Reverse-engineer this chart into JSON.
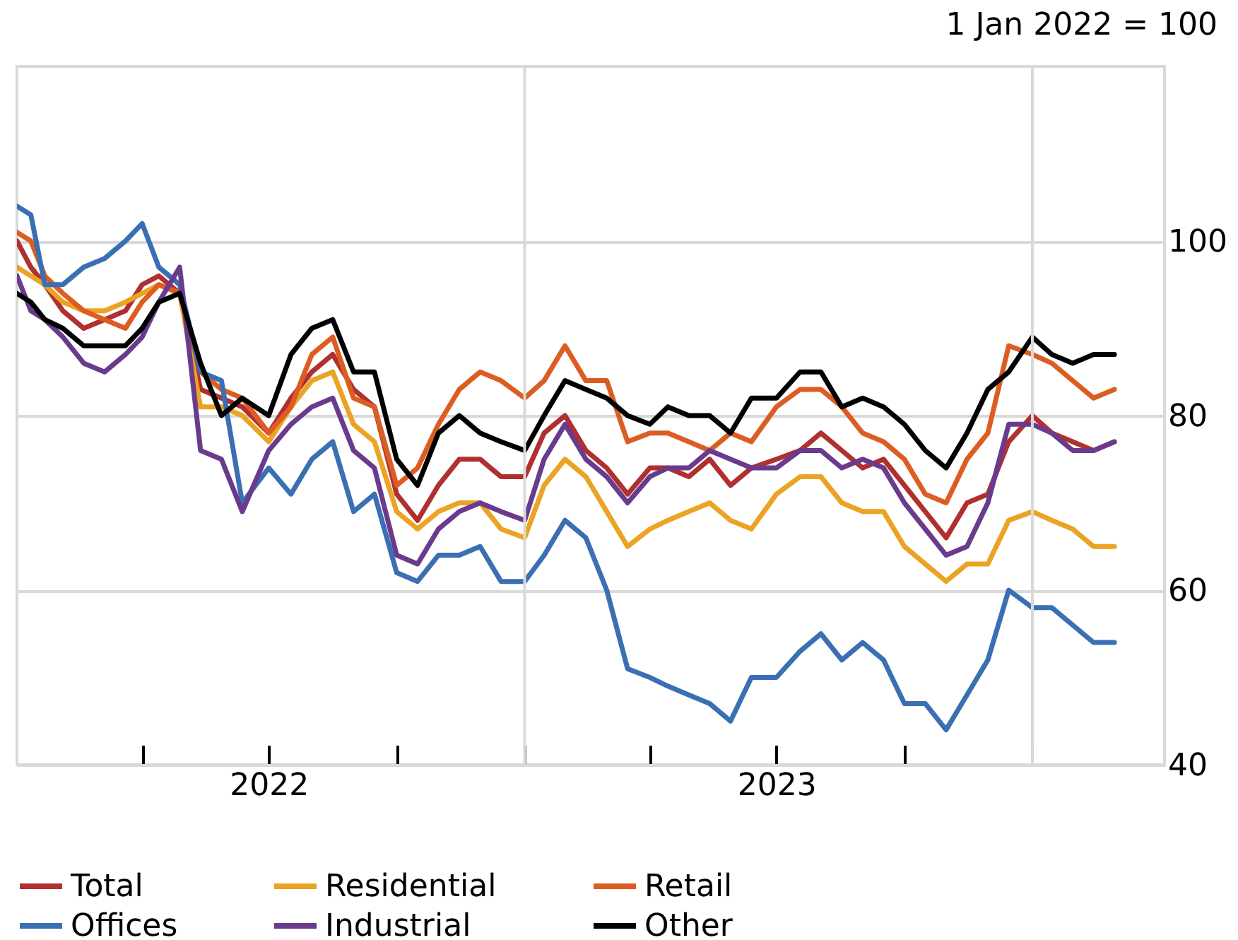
{
  "chart_data": {
    "type": "line",
    "ylabel": "1 Jan 2022 = 100",
    "x": [
      "2022-01-01",
      "2022-01-11",
      "2022-01-21",
      "2022-02-03",
      "2022-02-18",
      "2022-03-05",
      "2022-03-20",
      "2022-04-01",
      "2022-04-13",
      "2022-04-28",
      "2022-05-13",
      "2022-05-28",
      "2022-06-12",
      "2022-07-01",
      "2022-07-17",
      "2022-08-01",
      "2022-08-16",
      "2022-08-31",
      "2022-09-15",
      "2022-10-01",
      "2022-10-16",
      "2022-10-31",
      "2022-11-15",
      "2022-11-30",
      "2022-12-15",
      "2023-01-01",
      "2023-01-15",
      "2023-01-30",
      "2023-02-14",
      "2023-03-01",
      "2023-03-16",
      "2023-04-01",
      "2023-04-14",
      "2023-04-29",
      "2023-05-14",
      "2023-05-29",
      "2023-06-13",
      "2023-07-01",
      "2023-07-18",
      "2023-08-02",
      "2023-08-17",
      "2023-09-01",
      "2023-09-16",
      "2023-10-01",
      "2023-10-16",
      "2023-10-31",
      "2023-11-15",
      "2023-11-30",
      "2023-12-15",
      "2024-01-01",
      "2024-01-15",
      "2024-01-30",
      "2024-02-14",
      "2024-02-29"
    ],
    "series": [
      {
        "name": "Total",
        "color": "#b03030",
        "values": [
          100,
          97,
          95,
          92,
          90,
          91,
          92,
          95,
          96,
          94,
          83,
          82,
          81,
          78,
          82,
          85,
          87,
          83,
          81,
          71,
          68,
          72,
          75,
          75,
          73,
          73,
          78,
          80,
          76,
          74,
          71,
          74,
          74,
          73,
          75,
          72,
          74,
          75,
          76,
          78,
          76,
          74,
          75,
          72,
          69,
          66,
          70,
          71,
          77,
          80,
          78,
          77,
          76,
          77
        ]
      },
      {
        "name": "Residential",
        "color": "#eba324",
        "values": [
          97,
          96,
          95,
          93,
          92,
          92,
          93,
          94,
          95,
          94,
          81,
          81,
          80,
          77,
          81,
          84,
          85,
          79,
          77,
          69,
          67,
          69,
          70,
          70,
          67,
          66,
          72,
          75,
          73,
          69,
          65,
          67,
          68,
          69,
          70,
          68,
          67,
          71,
          73,
          73,
          70,
          69,
          69,
          65,
          63,
          61,
          63,
          63,
          68,
          69,
          68,
          67,
          65,
          65
        ]
      },
      {
        "name": "Retail",
        "color": "#dc5d22",
        "values": [
          101,
          100,
          96,
          94,
          92,
          91,
          90,
          93,
          95,
          94,
          85,
          83,
          82,
          78,
          81,
          87,
          89,
          82,
          81,
          72,
          74,
          79,
          83,
          85,
          84,
          82,
          84,
          88,
          84,
          84,
          77,
          78,
          78,
          77,
          76,
          78,
          77,
          81,
          83,
          83,
          81,
          78,
          77,
          75,
          71,
          70,
          75,
          78,
          88,
          87,
          86,
          84,
          82,
          83
        ]
      },
      {
        "name": "Offices",
        "color": "#3b6fb3",
        "values": [
          104,
          103,
          95,
          95,
          97,
          98,
          100,
          102,
          97,
          95,
          85,
          84,
          70,
          74,
          71,
          75,
          77,
          69,
          71,
          62,
          61,
          64,
          64,
          65,
          61,
          61,
          64,
          68,
          66,
          60,
          51,
          50,
          49,
          48,
          47,
          45,
          50,
          50,
          53,
          55,
          52,
          54,
          52,
          47,
          47,
          44,
          48,
          52,
          60,
          58,
          58,
          56,
          54,
          54
        ]
      },
      {
        "name": "Industrial",
        "color": "#6a3b8c",
        "values": [
          96,
          92,
          91,
          89,
          86,
          85,
          87,
          89,
          93,
          97,
          76,
          75,
          69,
          76,
          79,
          81,
          82,
          76,
          74,
          64,
          63,
          67,
          69,
          70,
          69,
          68,
          75,
          79,
          75,
          73,
          70,
          73,
          74,
          74,
          76,
          75,
          74,
          74,
          76,
          76,
          74,
          75,
          74,
          70,
          67,
          64,
          65,
          70,
          79,
          79,
          78,
          76,
          76,
          77
        ]
      },
      {
        "name": "Other",
        "color": "#000000",
        "values": [
          94,
          93,
          91,
          90,
          88,
          88,
          88,
          90,
          93,
          94,
          86,
          80,
          82,
          80,
          87,
          90,
          91,
          85,
          85,
          75,
          72,
          78,
          80,
          78,
          77,
          76,
          80,
          84,
          83,
          82,
          80,
          79,
          81,
          80,
          80,
          78,
          82,
          82,
          85,
          85,
          81,
          82,
          81,
          79,
          76,
          74,
          78,
          83,
          85,
          89,
          87,
          86,
          87,
          87
        ]
      }
    ],
    "xlim": [
      "2022-01-01",
      "2024-04-05"
    ],
    "xticks": [
      {
        "value": "2022-04-01",
        "label": null
      },
      {
        "value": "2022-07-01",
        "label": "2022"
      },
      {
        "value": "2022-10-01",
        "label": null
      },
      {
        "value": "2023-01-01",
        "label": null
      },
      {
        "value": "2023-04-01",
        "label": null
      },
      {
        "value": "2023-07-01",
        "label": "2023"
      },
      {
        "value": "2023-10-01",
        "label": null
      },
      {
        "value": "2024-01-01",
        "label": null
      }
    ],
    "ylim": [
      40,
      120
    ],
    "yticks": [
      40,
      60,
      80,
      100
    ],
    "ref_lines": [
      {
        "axis": "x",
        "value": "2023-01-01",
        "color": "#d9d9d9"
      },
      {
        "axis": "x",
        "value": "2024-01-01",
        "color": "#d9d9d9"
      }
    ],
    "grid": "y",
    "legend": "bottom",
    "line_style": "solid"
  }
}
